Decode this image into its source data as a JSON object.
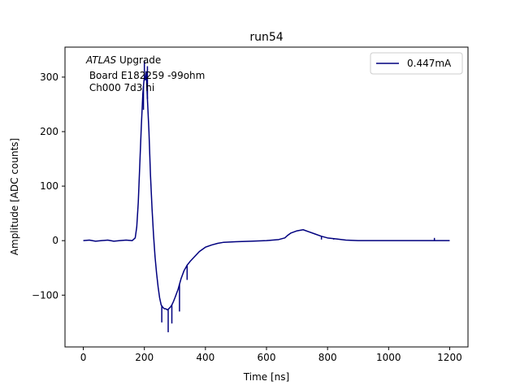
{
  "chart_data": {
    "type": "line",
    "title": "run54",
    "xlabel": "Time [ns]",
    "ylabel": "Amplitude [ADC counts]",
    "xlim": [
      -60,
      1260
    ],
    "ylim": [
      -195,
      355
    ],
    "xticks": [
      0,
      200,
      400,
      600,
      800,
      1000,
      1200
    ],
    "yticks": [
      -100,
      0,
      100,
      200,
      300
    ],
    "xtick_labels": [
      "0",
      "200",
      "400",
      "600",
      "800",
      "1000",
      "1200"
    ],
    "ytick_labels": [
      "−100",
      "0",
      "100",
      "200",
      "300"
    ],
    "grid": false,
    "legend_position": "top-right",
    "annotation": {
      "prefix": "ATLAS",
      "suffix": " Upgrade",
      "lines": [
        " Board E182259 -99ohm",
        " Ch000 7d3 hi"
      ]
    },
    "series": [
      {
        "name": "0.447mA",
        "color": "#00007f",
        "x": [
          0,
          20,
          40,
          60,
          80,
          100,
          120,
          140,
          160,
          170,
          175,
          180,
          185,
          190,
          195,
          198,
          200,
          203,
          206,
          210,
          215,
          220,
          225,
          230,
          235,
          240,
          245,
          250,
          255,
          260,
          265,
          270,
          275,
          280,
          285,
          290,
          295,
          300,
          310,
          320,
          330,
          340,
          350,
          360,
          380,
          400,
          420,
          440,
          460,
          500,
          550,
          600,
          640,
          660,
          670,
          680,
          700,
          720,
          740,
          760,
          780,
          800,
          830,
          860,
          900,
          1000,
          1100,
          1200
        ],
        "y": [
          0,
          1,
          -1,
          0,
          1,
          -1,
          0,
          1,
          0,
          5,
          25,
          70,
          140,
          210,
          270,
          290,
          300,
          295,
          310,
          260,
          200,
          120,
          60,
          10,
          -30,
          -60,
          -85,
          -105,
          -118,
          -122,
          -125,
          -125,
          -127,
          -125,
          -122,
          -118,
          -112,
          -105,
          -90,
          -70,
          -55,
          -45,
          -38,
          -32,
          -20,
          -12,
          -8,
          -5,
          -3,
          -2,
          -1,
          0,
          2,
          5,
          10,
          14,
          18,
          20,
          16,
          12,
          8,
          5,
          3,
          1,
          0,
          0,
          0,
          0
        ]
      }
    ],
    "spikes": [
      {
        "x": 200,
        "y": 330
      },
      {
        "x": 210,
        "y": 320
      },
      {
        "x": 197,
        "y": 240
      },
      {
        "x": 257,
        "y": -150
      },
      {
        "x": 278,
        "y": -168
      },
      {
        "x": 290,
        "y": -152
      },
      {
        "x": 315,
        "y": -130
      },
      {
        "x": 340,
        "y": -72
      },
      {
        "x": 780,
        "y": 2
      },
      {
        "x": 820,
        "y": 2
      },
      {
        "x": 1150,
        "y": 5
      }
    ]
  }
}
